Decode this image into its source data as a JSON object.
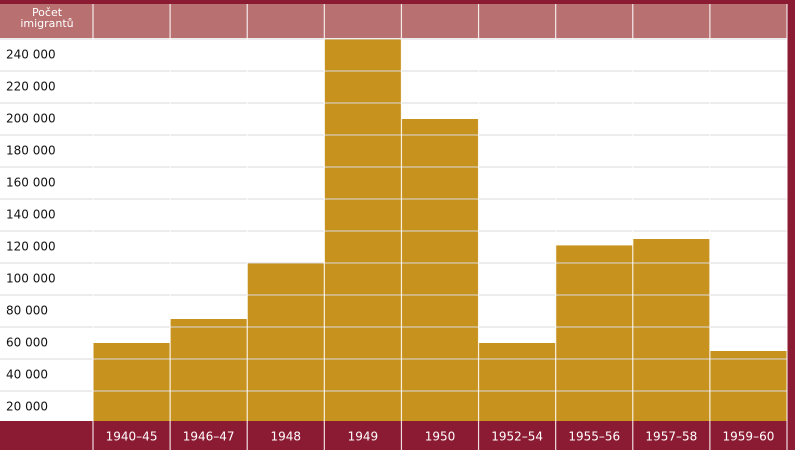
{
  "chart_data": {
    "type": "bar",
    "y_label": "Počet imigrantů",
    "categories": [
      "1940–45",
      "1946–47",
      "1948",
      "1949",
      "1950",
      "1952–54",
      "1955–56",
      "1957–58",
      "1959–60"
    ],
    "values": [
      60000,
      75000,
      110000,
      250000,
      200000,
      60000,
      121000,
      125000,
      55000
    ],
    "color": "#c8921f",
    "ylim": [
      11250,
      250625
    ],
    "yticks": [
      {
        "value": 20000,
        "label": "20 000"
      },
      {
        "value": 40000,
        "label": "40 000"
      },
      {
        "value": 60000,
        "label": "60 000"
      },
      {
        "value": 80000,
        "label": "80 000"
      },
      {
        "value": 100000,
        "label": "100 000"
      },
      {
        "value": 120000,
        "label": "120 000"
      },
      {
        "value": 140000,
        "label": "140 000"
      },
      {
        "value": 160000,
        "label": "160 000"
      },
      {
        "value": 180000,
        "label": "180 000"
      },
      {
        "value": 200000,
        "label": "200 000"
      },
      {
        "value": 220000,
        "label": "220 000"
      },
      {
        "value": 240000,
        "label": "240 000"
      }
    ]
  }
}
